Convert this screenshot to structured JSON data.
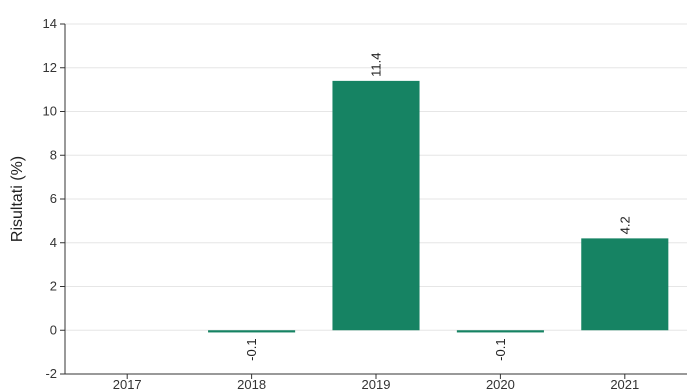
{
  "chart_data": {
    "type": "bar",
    "title": "",
    "xlabel": "",
    "ylabel": "Risultati (%)",
    "categories": [
      "2017",
      "2018",
      "2019",
      "2020",
      "2021"
    ],
    "values": [
      null,
      -0.1,
      11.4,
      -0.1,
      4.2
    ],
    "data_labels": [
      "",
      "-0.1",
      "11.4",
      "-0.1",
      "4.2"
    ],
    "ylim": [
      -2,
      14
    ],
    "yticks": [
      -2,
      0,
      2,
      4,
      6,
      8,
      10,
      12,
      14
    ],
    "grid": true,
    "bar_color": "#168363"
  }
}
